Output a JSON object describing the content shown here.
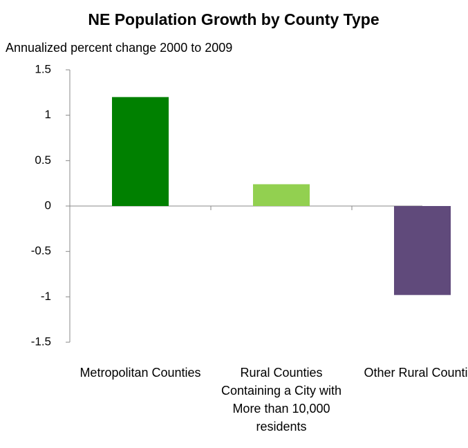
{
  "chart_data": {
    "type": "bar",
    "title": "NE Population Growth by County Type",
    "subtitle": "Annualized percent change 2000 to 2009",
    "categories": [
      "Metropolitan Counties",
      "Rural Counties Containing a City with More than 10,000 residents",
      "Other Rural Counties"
    ],
    "values": [
      1.2,
      0.24,
      -0.98
    ],
    "colors": [
      "#008000",
      "#92d050",
      "#604a7b"
    ],
    "ylim": [
      -1.5,
      1.5
    ],
    "yticks": [
      1.5,
      1,
      0.5,
      0,
      -0.5,
      -1,
      -1.5
    ],
    "grid": false
  }
}
